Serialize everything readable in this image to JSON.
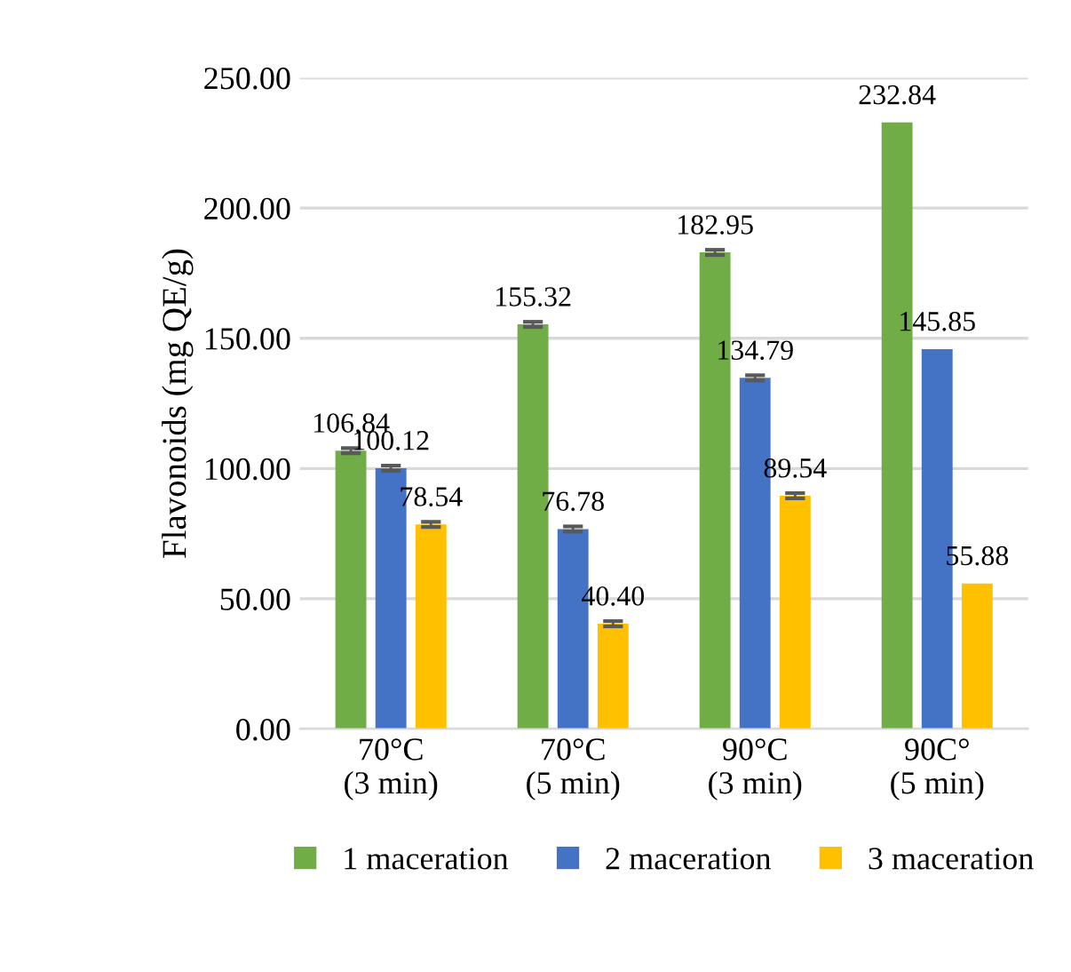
{
  "chart_data": {
    "type": "bar",
    "ylabel": "Flavonoids (mg QE/g)",
    "categories": [
      "70°C\n(3 min)",
      "70°C\n(5 min)",
      "90°C\n(3 min)",
      "90C°\n(5 min)"
    ],
    "series": [
      {
        "name": "1 maceration",
        "color": "#70ad47",
        "values": [
          106.84,
          155.32,
          182.95,
          232.84
        ],
        "value_labels": [
          "106.84",
          "155.32",
          "182.95",
          "232.84"
        ],
        "errors": [
          1,
          1,
          1,
          null
        ]
      },
      {
        "name": "2 maceration",
        "color": "#4472c4",
        "values": [
          100.12,
          76.78,
          134.79,
          145.85
        ],
        "value_labels": [
          "100.12",
          "76.78",
          "134.79",
          "145.85"
        ],
        "errors": [
          1,
          1,
          1,
          null
        ]
      },
      {
        "name": "3 maceration",
        "color": "#ffc000",
        "values": [
          78.54,
          40.4,
          89.54,
          55.88
        ],
        "value_labels": [
          "78.54",
          "40.40",
          "89.54",
          "55.88"
        ],
        "errors": [
          1,
          1,
          1,
          null
        ]
      }
    ],
    "ylim": [
      0,
      250
    ],
    "yticks": [
      {
        "value": 0,
        "label": "0.00"
      },
      {
        "value": 50,
        "label": "50.00"
      },
      {
        "value": 100,
        "label": "100.00"
      },
      {
        "value": 150,
        "label": "150.00"
      },
      {
        "value": 200,
        "label": "200.00"
      },
      {
        "value": 250,
        "label": "250.00"
      }
    ],
    "grid": "y",
    "legend": "bottom"
  }
}
